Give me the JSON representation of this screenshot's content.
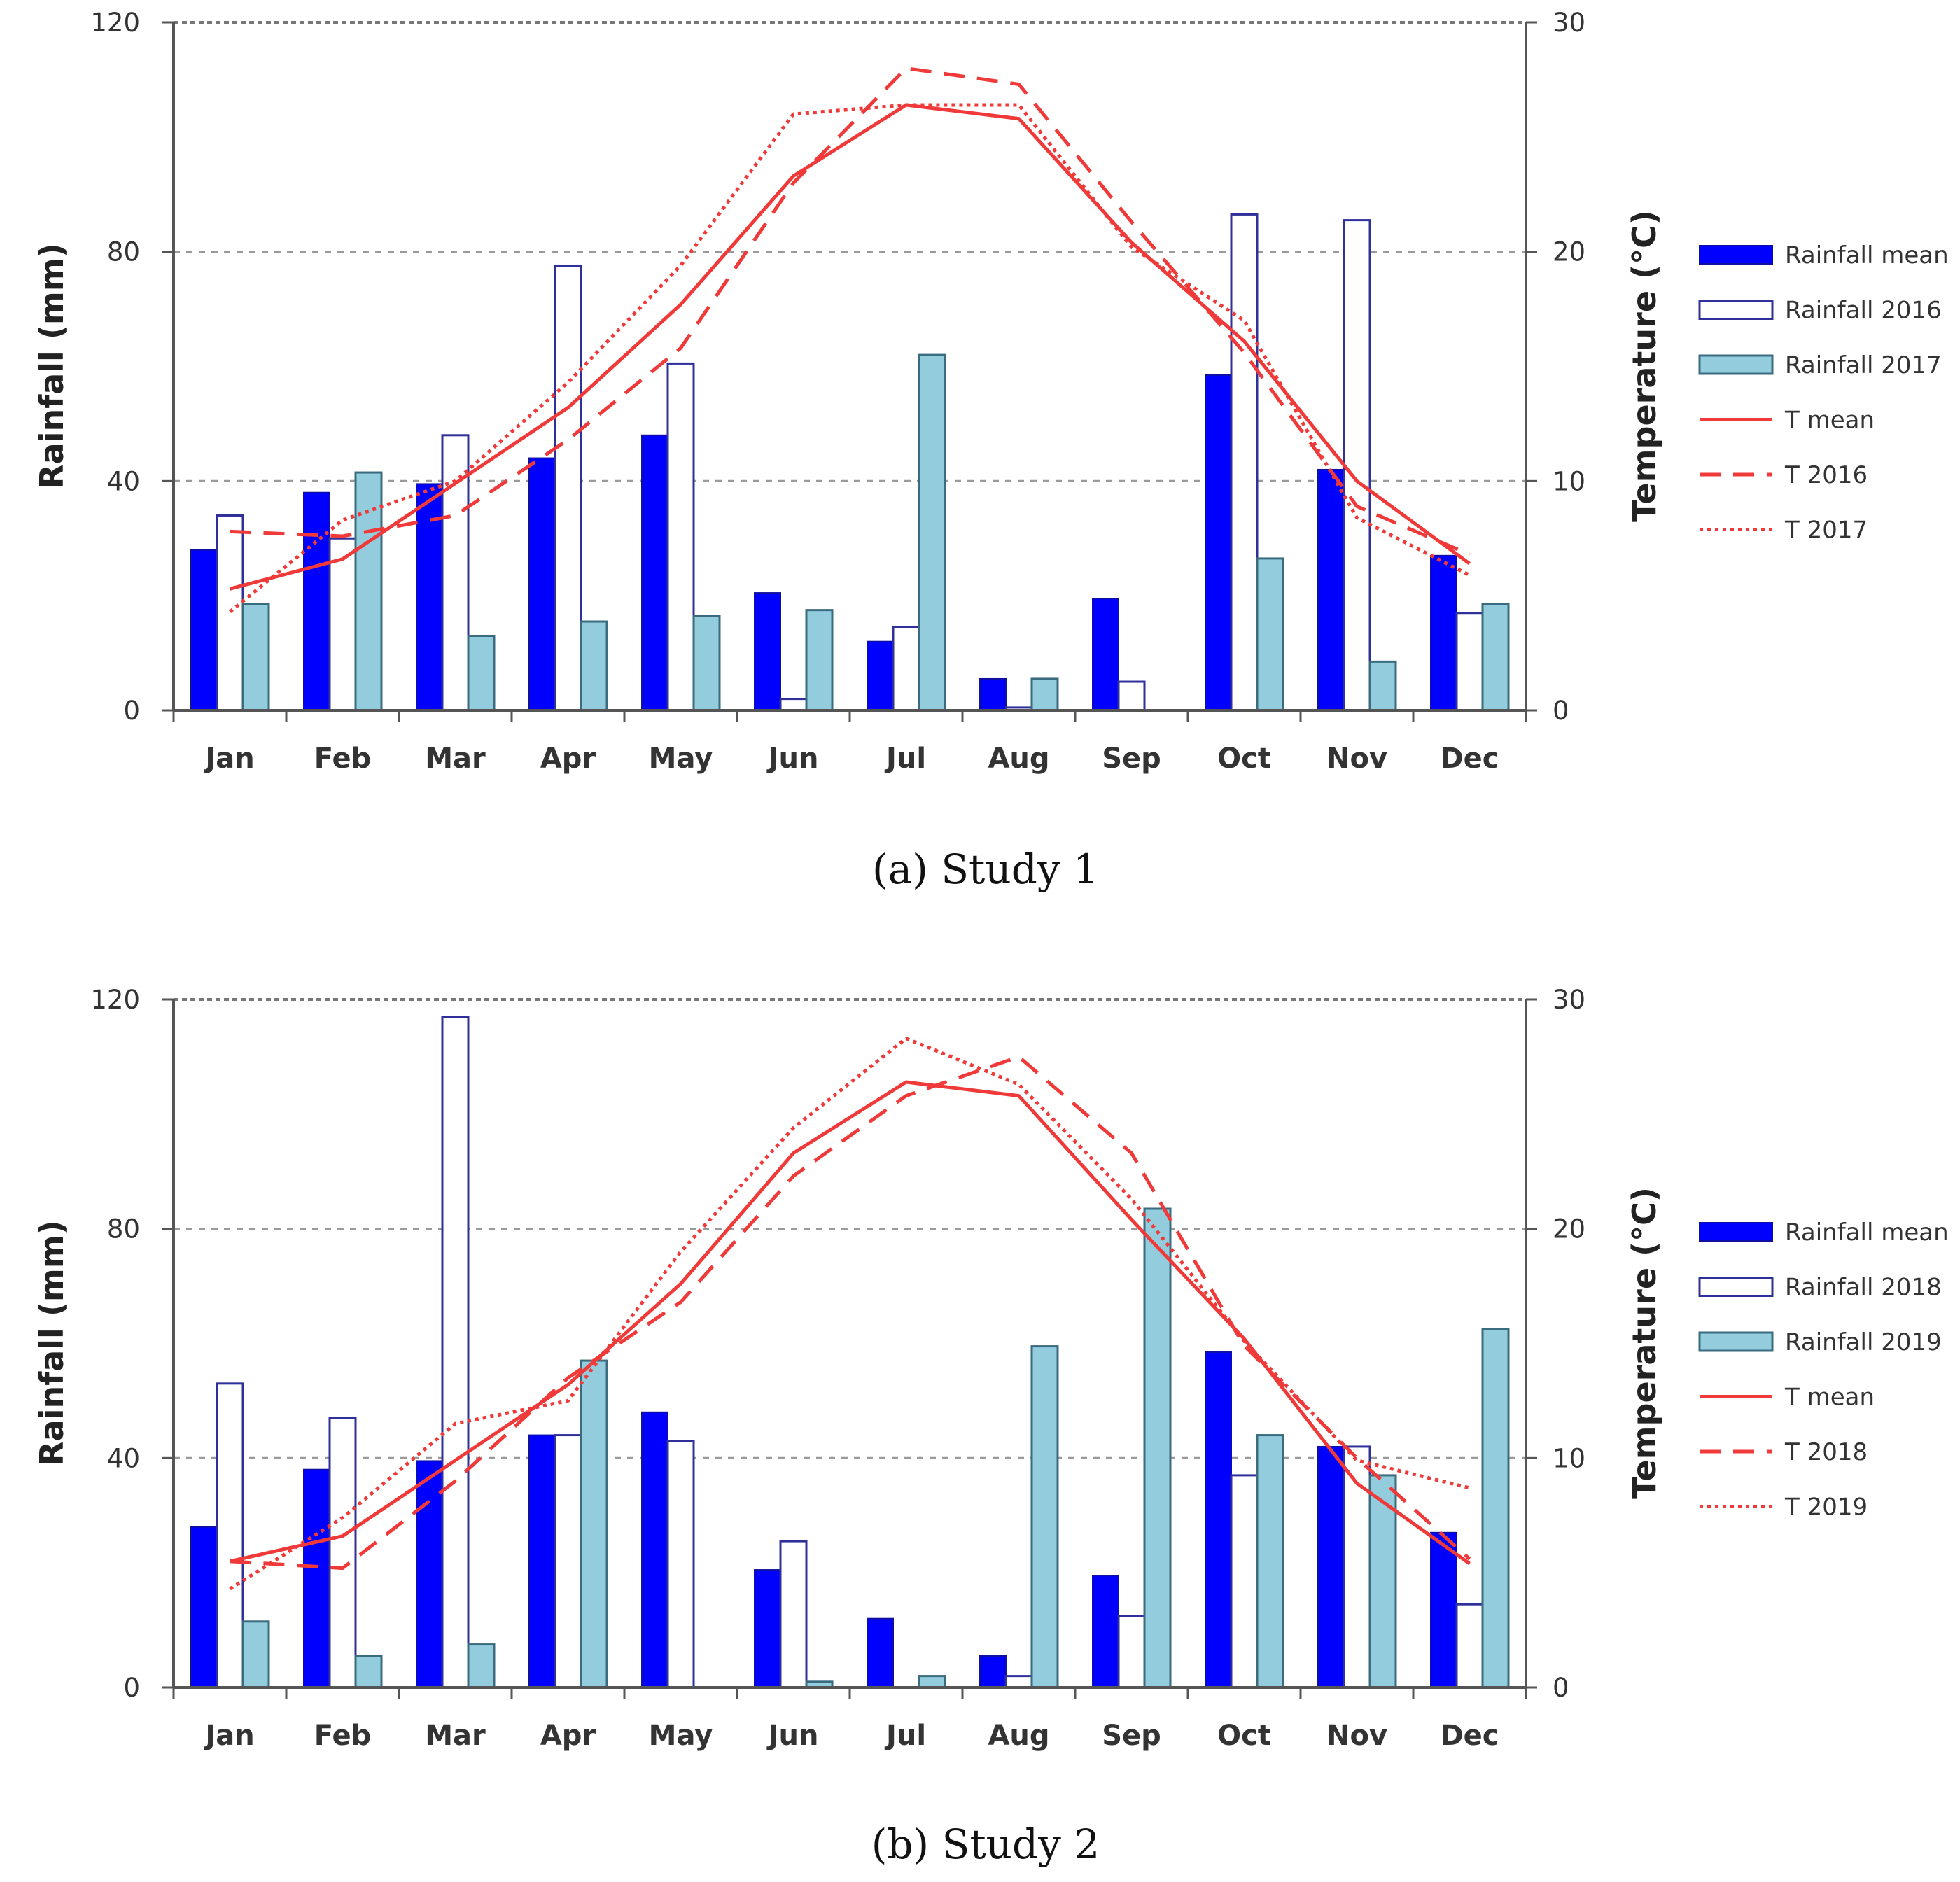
{
  "colors": {
    "rain_mean": "#0000ff",
    "rain_open_stroke": "#30309a",
    "rain_teal": "#93cddd",
    "rain_teal_stroke": "#3a6b7e",
    "temp": "#f03a3a"
  },
  "chart_data": [
    {
      "type": "bar",
      "caption": "(a) Study 1",
      "categories": [
        "Jan",
        "Feb",
        "Mar",
        "Apr",
        "May",
        "Jun",
        "Jul",
        "Aug",
        "Sep",
        "Oct",
        "Nov",
        "Dec"
      ],
      "ylabel": "Rainfall (mm)",
      "ylim": [
        0,
        120
      ],
      "yticks": [
        "0",
        "40",
        "80",
        "120"
      ],
      "y2label": "Temperature (°C)",
      "y2lim": [
        0,
        30
      ],
      "y2ticks": [
        "0",
        "10",
        "20",
        "30"
      ],
      "grid": "horizontal dashed at 40 and 80",
      "legend_position": "right",
      "bar_series": [
        {
          "name": "Rainfall mean",
          "style": "solid",
          "values": [
            28,
            38,
            39.5,
            44,
            48,
            20.5,
            12,
            5.5,
            19.5,
            58.5,
            42,
            27
          ]
        },
        {
          "name": "Rainfall 2016",
          "style": "open",
          "values": [
            34,
            30,
            48,
            77.5,
            60.5,
            2,
            14.5,
            0.5,
            5,
            86.5,
            85.5,
            17
          ]
        },
        {
          "name": "Rainfall 2017",
          "style": "teal",
          "values": [
            18.5,
            41.5,
            13,
            15.5,
            16.5,
            17.5,
            62,
            5.5,
            0,
            26.5,
            8.5,
            18.5
          ]
        }
      ],
      "line_series": [
        {
          "name": "T mean",
          "style": "solid",
          "values": [
            5.3,
            6.6,
            9.9,
            13.2,
            17.7,
            23.3,
            26.4,
            25.8,
            20.4,
            16.1,
            10.0,
            6.4
          ]
        },
        {
          "name": "T 2016",
          "style": "dashed",
          "values": [
            7.8,
            7.6,
            8.5,
            11.8,
            15.8,
            23.0,
            28.0,
            27.3,
            21.3,
            15.6,
            8.9,
            6.8
          ]
        },
        {
          "name": "T 2017",
          "style": "dotted",
          "values": [
            4.3,
            8.3,
            10.0,
            14.3,
            19.4,
            26.0,
            26.4,
            26.4,
            20.2,
            17.0,
            8.4,
            5.9
          ]
        }
      ]
    },
    {
      "type": "bar",
      "caption": "(b) Study 2",
      "categories": [
        "Jan",
        "Feb",
        "Mar",
        "Apr",
        "May",
        "Jun",
        "Jul",
        "Aug",
        "Sep",
        "Oct",
        "Nov",
        "Dec"
      ],
      "ylabel": "Rainfall (mm)",
      "ylim": [
        0,
        120
      ],
      "yticks": [
        "0",
        "40",
        "80",
        "120"
      ],
      "y2label": "Temperature (°C)",
      "y2lim": [
        0,
        30
      ],
      "y2ticks": [
        "0",
        "10",
        "20",
        "30"
      ],
      "grid": "horizontal dashed at 40 and 80",
      "legend_position": "right",
      "bar_series": [
        {
          "name": "Rainfall mean",
          "style": "solid",
          "values": [
            28,
            38,
            39.5,
            44,
            48,
            20.5,
            12,
            5.5,
            19.5,
            58.5,
            42,
            27
          ]
        },
        {
          "name": "Rainfall 2018",
          "style": "open",
          "values": [
            53,
            47,
            117,
            44,
            43,
            25.5,
            0,
            2,
            12.5,
            37,
            42,
            14.5
          ]
        },
        {
          "name": "Rainfall 2019",
          "style": "teal",
          "values": [
            11.5,
            5.5,
            7.5,
            57,
            0,
            1,
            2,
            59.5,
            83.5,
            44,
            37,
            62.5
          ]
        }
      ],
      "line_series": [
        {
          "name": "T mean",
          "style": "solid",
          "values": [
            5.5,
            6.6,
            9.9,
            13.2,
            17.6,
            23.3,
            26.4,
            25.8,
            20.4,
            15.2,
            8.9,
            5.4
          ]
        },
        {
          "name": "T 2018",
          "style": "dashed",
          "values": [
            5.5,
            5.2,
            9.0,
            13.5,
            16.8,
            22.3,
            25.8,
            27.5,
            23.3,
            14.9,
            10.0,
            5.6
          ]
        },
        {
          "name": "T 2019",
          "style": "dotted",
          "values": [
            4.3,
            7.4,
            11.5,
            12.5,
            19.0,
            24.4,
            28.3,
            26.3,
            21.3,
            15.1,
            9.9,
            8.7
          ]
        }
      ]
    }
  ]
}
